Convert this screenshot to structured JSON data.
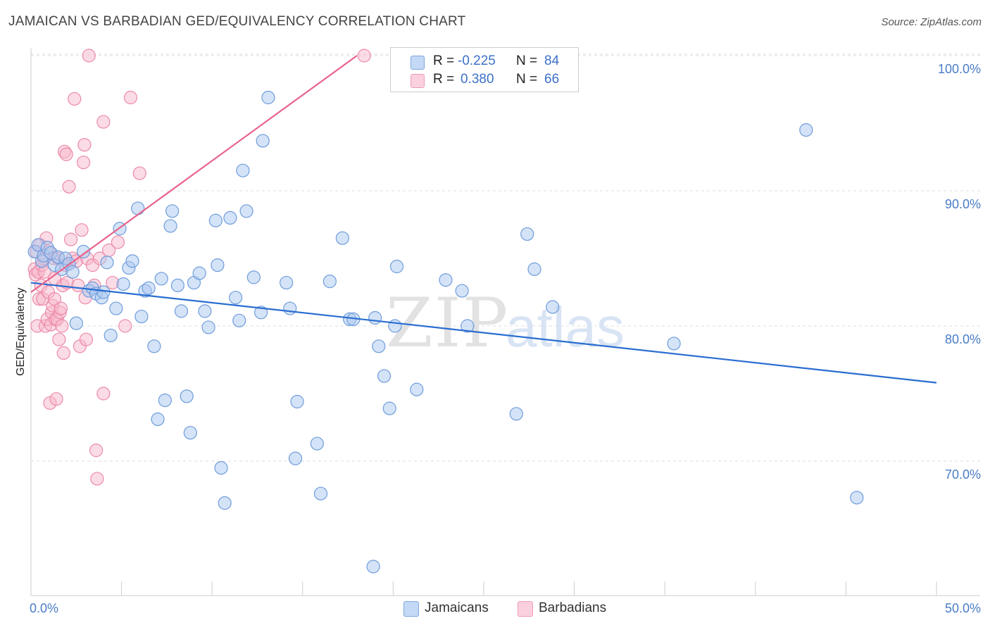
{
  "title": "JAMAICAN VS BARBADIAN GED/EQUIVALENCY CORRELATION CHART",
  "source": "Source: ZipAtlas.com",
  "watermark": {
    "zip": "ZIP",
    "atlas": "atlas"
  },
  "legend": {
    "jamaicans": {
      "r_label": "R =",
      "r_value": "-0.225",
      "n_label": "N =",
      "n_value": "84"
    },
    "barbadians": {
      "r_label": "R =",
      "r_value": "0.380",
      "n_label": "N =",
      "n_value": "66"
    }
  },
  "bottom_legend": {
    "jamaicans": "Jamaicans",
    "barbadians": "Barbadians"
  },
  "colors": {
    "jamaicans_fill": "#aac8f0",
    "jamaicans_stroke": "#6f9ddc",
    "jamaicans_line": "#2a6dd0",
    "barbadians_fill": "#f7b8cc",
    "barbadians_stroke": "#ec8aa8",
    "barbadians_line": "#e8638c",
    "tick_text": "#4a7cc7",
    "grid": "#dddddd"
  },
  "chart_data": {
    "type": "scatter",
    "title": "JAMAICAN VS BARBADIAN GED/EQUIVALENCY CORRELATION CHART",
    "xlabel": "",
    "ylabel": "GED/Equivalency",
    "xlim": [
      0,
      50
    ],
    "ylim": [
      60.5,
      102.2
    ],
    "x_tick_labels": [
      {
        "value": 0,
        "label": "0.0%"
      },
      {
        "value": 50,
        "label": "50.0%"
      }
    ],
    "y_ticks": [
      {
        "value": 70,
        "label": "70.0%"
      },
      {
        "value": 80,
        "label": "80.0%"
      },
      {
        "value": 90,
        "label": "90.0%"
      },
      {
        "value": 100,
        "label": "100.0%"
      }
    ],
    "x_minor_ticks": [
      0,
      5,
      10,
      15,
      20,
      25,
      30,
      35,
      40,
      45,
      50
    ],
    "series": [
      {
        "name": "Jamaicans",
        "r": -0.225,
        "n": 84,
        "trend": {
          "x": [
            0.0,
            50.0
          ],
          "y": [
            83.2,
            75.8
          ]
        },
        "points": [
          {
            "x": 0.2,
            "y": 85.5
          },
          {
            "x": 0.4,
            "y": 86.0
          },
          {
            "x": 0.6,
            "y": 84.8
          },
          {
            "x": 0.7,
            "y": 85.2
          },
          {
            "x": 0.9,
            "y": 85.8
          },
          {
            "x": 1.1,
            "y": 85.4
          },
          {
            "x": 1.3,
            "y": 84.5
          },
          {
            "x": 1.5,
            "y": 85.1
          },
          {
            "x": 1.7,
            "y": 84.2
          },
          {
            "x": 1.9,
            "y": 85.0
          },
          {
            "x": 2.1,
            "y": 84.6
          },
          {
            "x": 2.3,
            "y": 84.0
          },
          {
            "x": 2.5,
            "y": 80.2
          },
          {
            "x": 2.9,
            "y": 85.5
          },
          {
            "x": 3.2,
            "y": 82.6
          },
          {
            "x": 3.4,
            "y": 82.8
          },
          {
            "x": 3.6,
            "y": 82.4
          },
          {
            "x": 3.9,
            "y": 82.1
          },
          {
            "x": 4.0,
            "y": 82.5
          },
          {
            "x": 4.2,
            "y": 84.7
          },
          {
            "x": 4.4,
            "y": 79.3
          },
          {
            "x": 4.7,
            "y": 81.3
          },
          {
            "x": 4.9,
            "y": 87.2
          },
          {
            "x": 5.1,
            "y": 83.1
          },
          {
            "x": 5.4,
            "y": 84.3
          },
          {
            "x": 5.6,
            "y": 84.8
          },
          {
            "x": 5.9,
            "y": 88.7
          },
          {
            "x": 6.1,
            "y": 80.7
          },
          {
            "x": 6.3,
            "y": 82.6
          },
          {
            "x": 6.5,
            "y": 82.8
          },
          {
            "x": 6.8,
            "y": 78.5
          },
          {
            "x": 7.0,
            "y": 73.1
          },
          {
            "x": 7.2,
            "y": 83.5
          },
          {
            "x": 7.4,
            "y": 74.5
          },
          {
            "x": 7.7,
            "y": 87.4
          },
          {
            "x": 7.8,
            "y": 88.5
          },
          {
            "x": 8.1,
            "y": 83.0
          },
          {
            "x": 8.3,
            "y": 81.1
          },
          {
            "x": 8.6,
            "y": 74.8
          },
          {
            "x": 8.8,
            "y": 72.1
          },
          {
            "x": 9.0,
            "y": 83.2
          },
          {
            "x": 9.3,
            "y": 83.9
          },
          {
            "x": 9.6,
            "y": 81.1
          },
          {
            "x": 9.8,
            "y": 79.9
          },
          {
            "x": 10.2,
            "y": 87.8
          },
          {
            "x": 10.3,
            "y": 84.5
          },
          {
            "x": 10.5,
            "y": 69.5
          },
          {
            "x": 10.7,
            "y": 66.9
          },
          {
            "x": 11.0,
            "y": 88.0
          },
          {
            "x": 11.3,
            "y": 82.1
          },
          {
            "x": 11.5,
            "y": 80.4
          },
          {
            "x": 11.7,
            "y": 91.5
          },
          {
            "x": 11.9,
            "y": 88.5
          },
          {
            "x": 12.3,
            "y": 83.6
          },
          {
            "x": 12.7,
            "y": 81.0
          },
          {
            "x": 12.8,
            "y": 93.7
          },
          {
            "x": 13.1,
            "y": 96.9
          },
          {
            "x": 14.1,
            "y": 83.2
          },
          {
            "x": 14.3,
            "y": 81.3
          },
          {
            "x": 14.6,
            "y": 70.2
          },
          {
            "x": 14.7,
            "y": 74.4
          },
          {
            "x": 15.8,
            "y": 71.3
          },
          {
            "x": 16.0,
            "y": 67.6
          },
          {
            "x": 16.5,
            "y": 83.3
          },
          {
            "x": 17.2,
            "y": 86.5
          },
          {
            "x": 17.6,
            "y": 80.5
          },
          {
            "x": 17.8,
            "y": 80.5
          },
          {
            "x": 18.9,
            "y": 62.2
          },
          {
            "x": 19.0,
            "y": 80.6
          },
          {
            "x": 19.2,
            "y": 78.5
          },
          {
            "x": 19.5,
            "y": 76.3
          },
          {
            "x": 19.8,
            "y": 73.9
          },
          {
            "x": 20.1,
            "y": 80.0
          },
          {
            "x": 20.2,
            "y": 84.4
          },
          {
            "x": 21.3,
            "y": 75.3
          },
          {
            "x": 22.9,
            "y": 83.4
          },
          {
            "x": 23.8,
            "y": 82.6
          },
          {
            "x": 24.1,
            "y": 80.0
          },
          {
            "x": 26.8,
            "y": 73.5
          },
          {
            "x": 27.4,
            "y": 86.8
          },
          {
            "x": 27.8,
            "y": 84.2
          },
          {
            "x": 28.8,
            "y": 81.4
          },
          {
            "x": 35.5,
            "y": 78.7
          },
          {
            "x": 42.8,
            "y": 94.5
          },
          {
            "x": 45.6,
            "y": 67.3
          }
        ]
      },
      {
        "name": "Barbadians",
        "r": 0.38,
        "n": 66,
        "trend": {
          "x": [
            0.0,
            18.0
          ],
          "y": [
            82.5,
            100.0
          ]
        },
        "points": [
          {
            "x": 0.2,
            "y": 84.2
          },
          {
            "x": 0.25,
            "y": 83.8
          },
          {
            "x": 0.3,
            "y": 85.5
          },
          {
            "x": 0.35,
            "y": 80.0
          },
          {
            "x": 0.4,
            "y": 84.0
          },
          {
            "x": 0.45,
            "y": 82.0
          },
          {
            "x": 0.5,
            "y": 86.0
          },
          {
            "x": 0.55,
            "y": 83.0
          },
          {
            "x": 0.6,
            "y": 84.5
          },
          {
            "x": 0.65,
            "y": 82.0
          },
          {
            "x": 0.7,
            "y": 85.0
          },
          {
            "x": 0.75,
            "y": 84.0
          },
          {
            "x": 0.8,
            "y": 80.0
          },
          {
            "x": 0.85,
            "y": 86.5
          },
          {
            "x": 0.9,
            "y": 80.5
          },
          {
            "x": 0.95,
            "y": 82.5
          },
          {
            "x": 1.0,
            "y": 85.5
          },
          {
            "x": 1.05,
            "y": 74.3
          },
          {
            "x": 1.1,
            "y": 80.1
          },
          {
            "x": 1.15,
            "y": 81.0
          },
          {
            "x": 1.2,
            "y": 81.5
          },
          {
            "x": 1.25,
            "y": 85.0
          },
          {
            "x": 1.3,
            "y": 82.0
          },
          {
            "x": 1.35,
            "y": 80.5
          },
          {
            "x": 1.4,
            "y": 74.6
          },
          {
            "x": 1.45,
            "y": 80.5
          },
          {
            "x": 1.5,
            "y": 85.0
          },
          {
            "x": 1.55,
            "y": 79.0
          },
          {
            "x": 1.6,
            "y": 81.0
          },
          {
            "x": 1.65,
            "y": 81.3
          },
          {
            "x": 1.7,
            "y": 80.0
          },
          {
            "x": 1.75,
            "y": 83.0
          },
          {
            "x": 1.8,
            "y": 78.0
          },
          {
            "x": 1.85,
            "y": 92.9
          },
          {
            "x": 1.9,
            "y": 84.5
          },
          {
            "x": 1.95,
            "y": 92.7
          },
          {
            "x": 2.0,
            "y": 83.2
          },
          {
            "x": 2.1,
            "y": 90.3
          },
          {
            "x": 2.2,
            "y": 86.4
          },
          {
            "x": 2.3,
            "y": 85.0
          },
          {
            "x": 2.4,
            "y": 96.8
          },
          {
            "x": 2.5,
            "y": 84.8
          },
          {
            "x": 2.6,
            "y": 83.0
          },
          {
            "x": 2.7,
            "y": 78.5
          },
          {
            "x": 2.8,
            "y": 87.1
          },
          {
            "x": 2.9,
            "y": 92.1
          },
          {
            "x": 2.95,
            "y": 93.4
          },
          {
            "x": 3.0,
            "y": 82.1
          },
          {
            "x": 3.05,
            "y": 79.0
          },
          {
            "x": 3.1,
            "y": 85.0
          },
          {
            "x": 3.2,
            "y": 100.0
          },
          {
            "x": 3.4,
            "y": 84.5
          },
          {
            "x": 3.5,
            "y": 83.0
          },
          {
            "x": 3.6,
            "y": 70.8
          },
          {
            "x": 3.65,
            "y": 68.7
          },
          {
            "x": 3.8,
            "y": 85.0
          },
          {
            "x": 4.0,
            "y": 95.1
          },
          {
            "x": 4.0,
            "y": 75.0
          },
          {
            "x": 4.3,
            "y": 85.6
          },
          {
            "x": 4.5,
            "y": 83.2
          },
          {
            "x": 4.8,
            "y": 86.2
          },
          {
            "x": 5.2,
            "y": 80.0
          },
          {
            "x": 5.5,
            "y": 96.9
          },
          {
            "x": 6.0,
            "y": 91.3
          },
          {
            "x": 18.4,
            "y": 100.0
          },
          {
            "x": 1.3,
            "y": 83.5
          }
        ]
      }
    ]
  }
}
